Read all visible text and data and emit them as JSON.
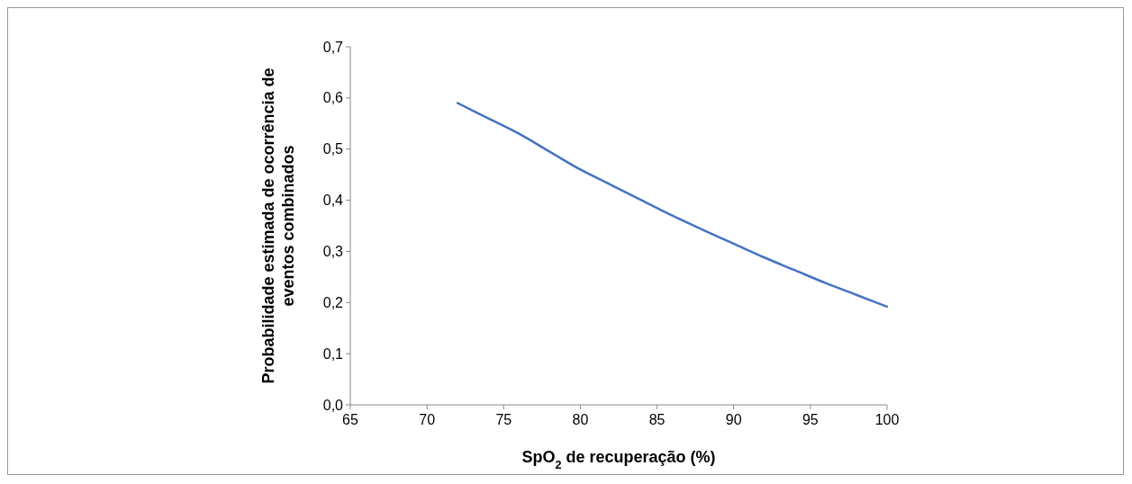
{
  "chart_data": {
    "type": "line",
    "xlabel": "SpO$_{2}$ de recuperação (%)",
    "ylabel": "Probabilidade estimada de ocorrência de eventos combinados",
    "x": [
      72,
      74,
      76,
      78,
      80,
      82,
      84,
      86,
      88,
      90,
      92,
      94,
      96,
      98,
      100
    ],
    "series": [
      {
        "color": "#4472c4",
        "values": [
          0.59,
          0.56,
          0.53,
          0.495,
          0.46,
          0.43,
          0.4,
          0.37,
          0.342,
          0.315,
          0.288,
          0.263,
          0.238,
          0.215,
          0.192
        ]
      }
    ],
    "xlim": [
      65,
      100
    ],
    "xticks": [
      65,
      70,
      75,
      80,
      85,
      90,
      95,
      100
    ],
    "ylim": [
      0,
      0.7
    ],
    "yticks": [
      {
        "value": 0,
        "label": "0,0"
      },
      {
        "value": 0.1,
        "label": "0,1"
      },
      {
        "value": 0.2,
        "label": "0,2"
      },
      {
        "value": 0.3,
        "label": "0,3"
      },
      {
        "value": 0.4,
        "label": "0,4"
      },
      {
        "value": 0.5,
        "label": "0,5"
      },
      {
        "value": 0.6,
        "label": "0,6"
      },
      {
        "value": 0.7,
        "label": "0,7"
      }
    ],
    "line_style": "solid"
  }
}
